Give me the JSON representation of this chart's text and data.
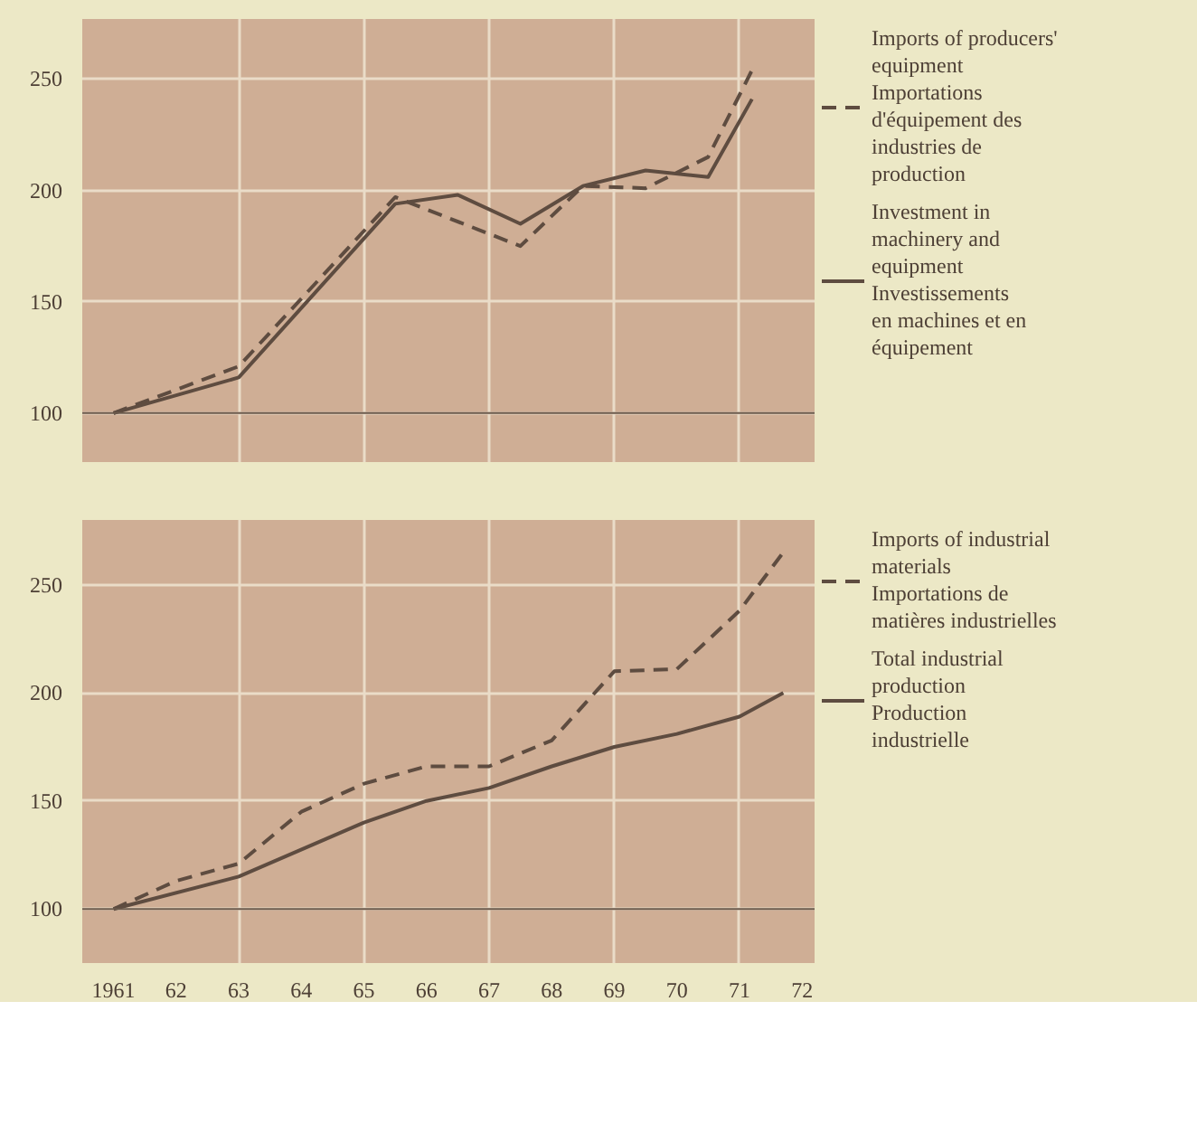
{
  "chart_data": [
    {
      "type": "line",
      "xlim": [
        1960.5,
        1972.2
      ],
      "ylim": [
        78,
        277
      ],
      "yticks": [
        100,
        150,
        200,
        250
      ],
      "xticks": [
        {
          "value": 1963,
          "label": null
        },
        {
          "value": 1965,
          "label": null
        },
        {
          "value": 1967,
          "label": null
        },
        {
          "value": 1969,
          "label": null
        },
        {
          "value": 1971,
          "label": null
        }
      ],
      "tick_labels": "y",
      "grid": true,
      "legend": "right",
      "ref_lines": [
        {
          "axis": "y",
          "value": 100,
          "label": null,
          "color": "#6b5a4c"
        }
      ],
      "series": [
        {
          "name": "Imports of producers'\nequipment\nImportations\nd'équipement des\nindustries de\nproduction",
          "color": "#5e4c40",
          "line_style": "dashed",
          "x": [
            1961,
            1963,
            1965.5,
            1967.5,
            1968.5,
            1969.5,
            1970.5,
            1971.2
          ],
          "values": [
            100,
            121,
            197,
            175,
            202,
            201,
            215,
            254
          ]
        },
        {
          "name": "Investment in\nmachinery and\nequipment\nInvestissements\nen machines et en\néquipement",
          "color": "#5e4c40",
          "line_style": "solid",
          "x": [
            1961,
            1963,
            1965.5,
            1966.5,
            1967.5,
            1968.5,
            1969.5,
            1970.5,
            1971.2
          ],
          "values": [
            100,
            116,
            194,
            198,
            185,
            202,
            209,
            206,
            241
          ]
        }
      ]
    },
    {
      "type": "line",
      "xlim": [
        1960.5,
        1972.2
      ],
      "ylim": [
        75,
        280
      ],
      "yticks": [
        100,
        150,
        200,
        250
      ],
      "xticks": [
        1961,
        {
          "value": 1962,
          "label": "62"
        },
        {
          "value": 1963,
          "label": "63"
        },
        {
          "value": 1964,
          "label": "64"
        },
        {
          "value": 1965,
          "label": "65"
        },
        {
          "value": 1966,
          "label": "66"
        },
        {
          "value": 1967,
          "label": "67"
        },
        {
          "value": 1968,
          "label": "68"
        },
        {
          "value": 1969,
          "label": "69"
        },
        {
          "value": 1970,
          "label": "70"
        },
        {
          "value": 1971,
          "label": "71"
        },
        {
          "value": 1972,
          "label": "72"
        }
      ],
      "grid": true,
      "legend": "right",
      "ref_lines": [
        {
          "axis": "y",
          "value": 100,
          "label": null,
          "color": "#6b5a4c"
        }
      ],
      "series": [
        {
          "name": "Imports of industrial\nmaterials\nImportations de\nmatières industrielles",
          "color": "#5e4c40",
          "line_style": "dashed",
          "x": [
            1961,
            1962,
            1963,
            1964,
            1965,
            1966,
            1967,
            1968,
            1969,
            1970,
            1971,
            1971.7
          ],
          "values": [
            100,
            113,
            121,
            145,
            158,
            166,
            166,
            178,
            210,
            211,
            238,
            265
          ]
        },
        {
          "name": "Total industrial\nproduction\nProduction\nindustrielle",
          "color": "#5e4c40",
          "line_style": "solid",
          "x": [
            1961,
            1963,
            1965,
            1966,
            1967,
            1968,
            1969,
            1970,
            1971,
            1971.7
          ],
          "values": [
            100,
            115,
            140,
            150,
            156,
            166,
            175,
            181,
            189,
            200
          ]
        }
      ]
    }
  ]
}
